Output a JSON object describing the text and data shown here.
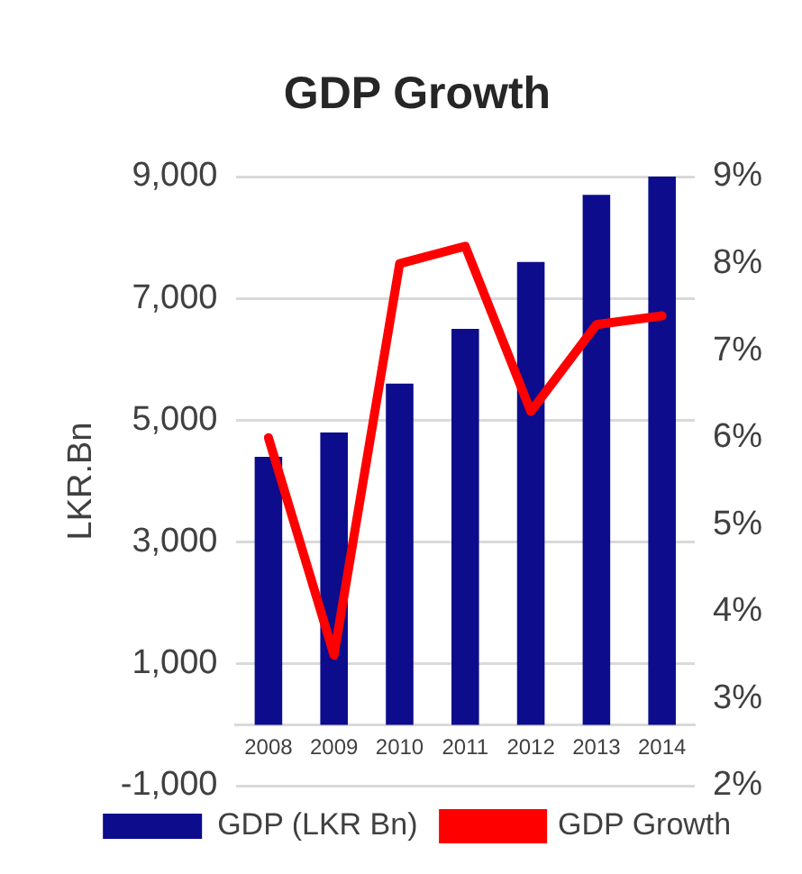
{
  "chart_data": {
    "type": "bar",
    "title": "GDP Growth",
    "ylabel": "LKR.Bn",
    "categories": [
      "2008",
      "2009",
      "2010",
      "2011",
      "2012",
      "2013",
      "2014"
    ],
    "series": [
      {
        "name": "GDP (LKR Bn)",
        "color": "#0c0c8c",
        "values": [
          4400,
          4800,
          5600,
          6500,
          7600,
          8700,
          9000
        ]
      },
      {
        "name": "GDP Growth",
        "type": "line",
        "axis": "y2",
        "color": "#ff0000",
        "marker": "none",
        "values": [
          6.0,
          3.5,
          8.0,
          8.2,
          6.3,
          7.3,
          7.4
        ]
      }
    ],
    "ylim": [
      -1000,
      9000
    ],
    "yticks": [
      {
        "value": -1000,
        "label": "-1,000"
      },
      {
        "value": 1000,
        "label": "1,000"
      },
      {
        "value": 3000,
        "label": "3,000"
      },
      {
        "value": 5000,
        "label": "5,000"
      },
      {
        "value": 7000,
        "label": "7,000"
      },
      {
        "value": 9000,
        "label": "9,000"
      }
    ],
    "y2lim": [
      2,
      9
    ],
    "y2ticks": [
      {
        "value": 2,
        "label": "2%"
      },
      {
        "value": 3,
        "label": "3%"
      },
      {
        "value": 4,
        "label": "4%"
      },
      {
        "value": 5,
        "label": "5%"
      },
      {
        "value": 6,
        "label": "6%"
      },
      {
        "value": 7,
        "label": "7%"
      },
      {
        "value": 8,
        "label": "8%"
      },
      {
        "value": 9,
        "label": "9%"
      }
    ],
    "grid": "y",
    "legend": "bottom"
  }
}
